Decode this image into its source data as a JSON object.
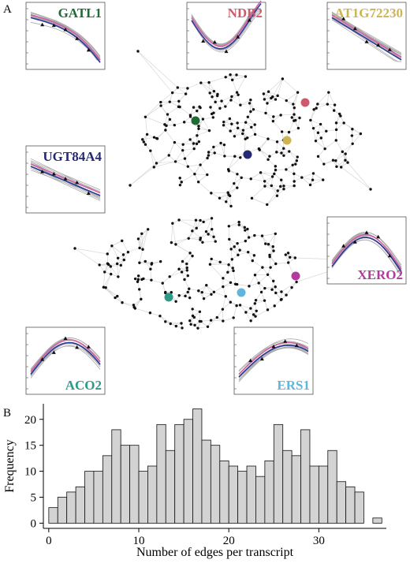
{
  "panel_a": {
    "label": "A",
    "genes": [
      {
        "name": "GATL1",
        "color": "#1f6b35"
      },
      {
        "name": "NDB2",
        "color": "#cf5a6e"
      },
      {
        "name": "AT1G72230",
        "color": "#cdb451"
      },
      {
        "name": "UGT84A4",
        "color": "#252a72"
      },
      {
        "name": "XERO2",
        "color": "#b3399f"
      },
      {
        "name": "ACO2",
        "color": "#2c9a86"
      },
      {
        "name": "ERS1",
        "color": "#5fb6dd"
      }
    ]
  },
  "panel_b": {
    "label": "B",
    "chart_data": {
      "type": "histogram",
      "x_label": "Number of edges per transcript",
      "y_label": "Frequency",
      "bins": [
        0,
        1,
        2,
        3,
        4,
        5,
        6,
        7,
        8,
        9,
        10,
        11,
        12,
        13,
        14,
        15,
        16,
        17,
        18,
        19,
        20,
        21,
        22,
        23,
        24,
        25,
        26,
        27,
        28,
        29,
        30,
        31,
        32,
        33,
        34,
        35,
        36,
        37
      ],
      "values": [
        3,
        5,
        6,
        7,
        10,
        10,
        13,
        18,
        15,
        15,
        10,
        11,
        19,
        14,
        19,
        20,
        22,
        16,
        15,
        12,
        11,
        10,
        11,
        9,
        12,
        19,
        14,
        13,
        18,
        11,
        11,
        14,
        8,
        7,
        6,
        0,
        1
      ],
      "color": "#d3d3d3",
      "xlim": [
        -0.6,
        37.5
      ],
      "ylim": [
        -1,
        23
      ],
      "xticks": [
        0,
        10,
        20,
        30
      ],
      "yticks": [
        0,
        5,
        10,
        15,
        20
      ]
    }
  }
}
